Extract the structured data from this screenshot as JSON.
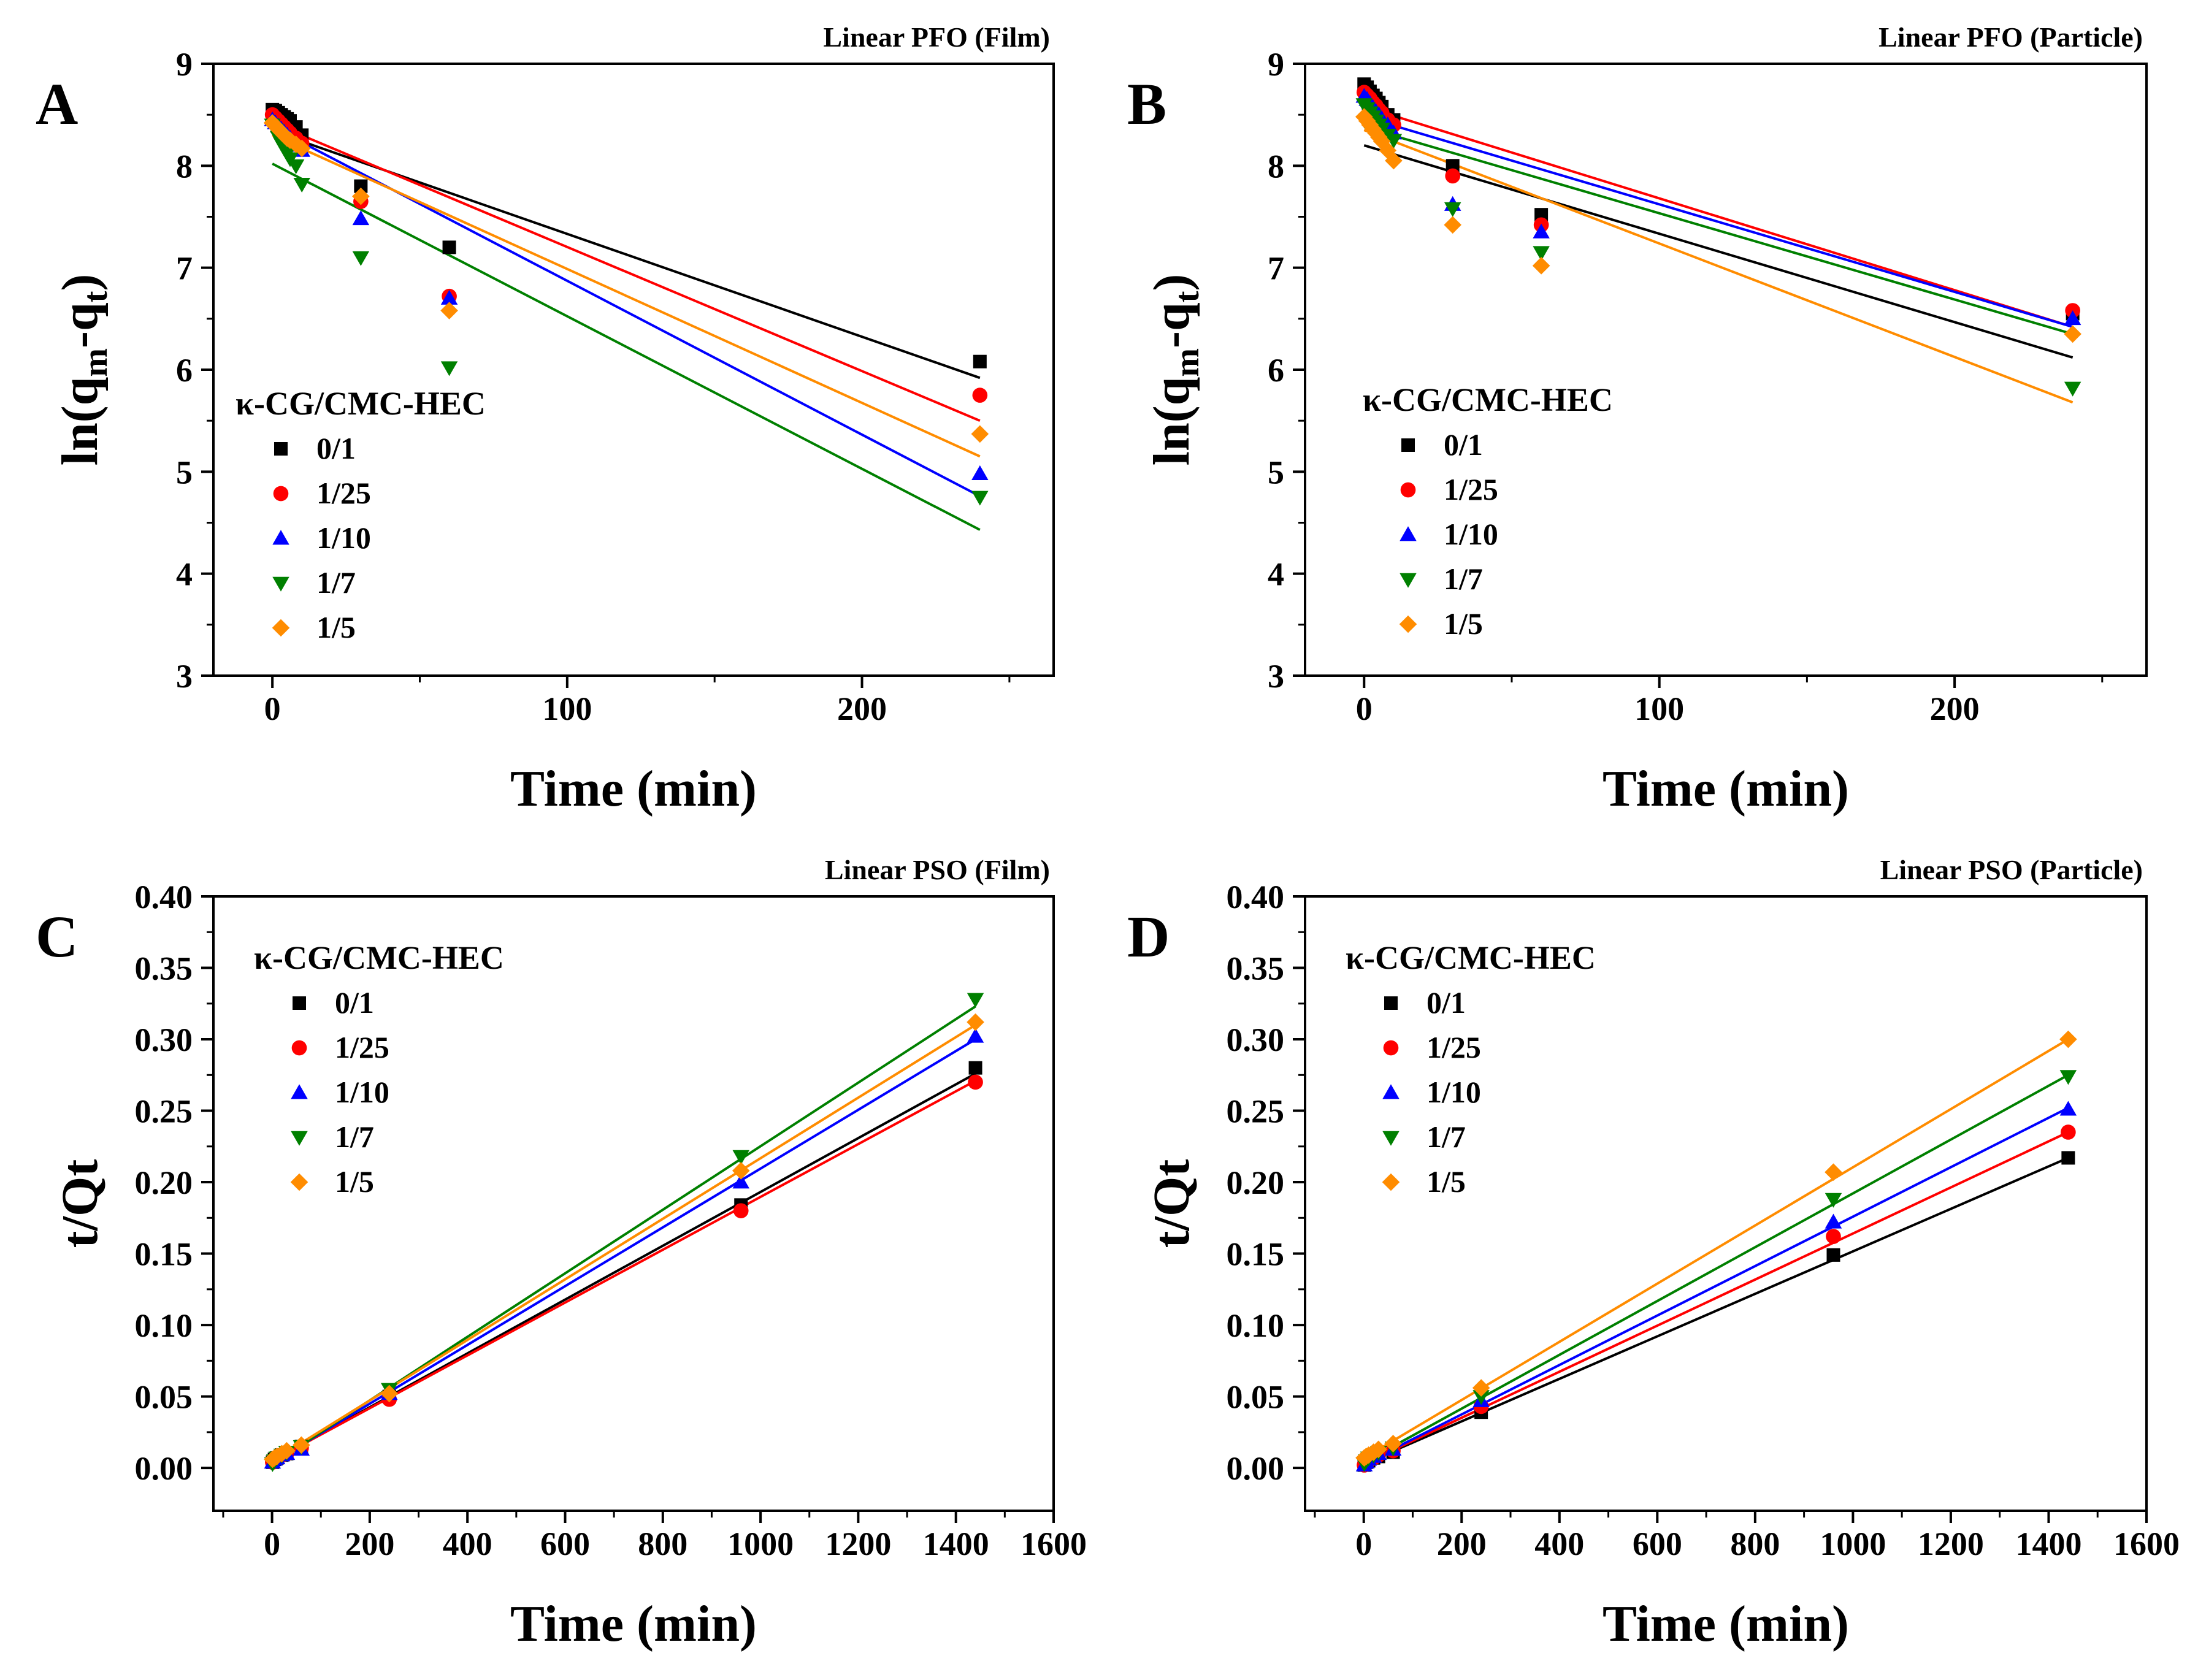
{
  "legend_title": "κ-CG/CMC-HEC",
  "series_names": [
    "0/1",
    "1/25",
    "1/10",
    "1/7",
    "1/5"
  ],
  "series_colors": [
    "#000000",
    "#ff0000",
    "#0000ff",
    "#008000",
    "#ff8c00"
  ],
  "series_markers": [
    "square",
    "circle",
    "triangle-up",
    "triangle-down",
    "diamond"
  ],
  "chart_data": [
    {
      "id": "A",
      "letter": "A",
      "type": "scatter",
      "title": "Linear PFO (Film)",
      "xlabel": "Time (min)",
      "ylabel_main": "ln(q",
      "ylabel_sub1": "m",
      "ylabel_mid": "-q",
      "ylabel_sub2": "t",
      "ylabel_end": ")",
      "xlim": [
        -20,
        265
      ],
      "ylim": [
        3,
        9
      ],
      "xticks": [
        0,
        100,
        200
      ],
      "yticks": [
        3,
        4,
        5,
        6,
        7,
        8,
        9
      ],
      "tick_decimals": 0,
      "series": [
        {
          "name": "0/1",
          "x": [
            0,
            1,
            2,
            3,
            4,
            5,
            6,
            8,
            10,
            30,
            60,
            240
          ],
          "y": [
            8.55,
            8.54,
            8.52,
            8.5,
            8.48,
            8.46,
            8.44,
            8.38,
            8.3,
            7.8,
            7.2,
            6.08
          ],
          "fit": [
            8.34,
            5.92
          ]
        },
        {
          "name": "1/25",
          "x": [
            0,
            1,
            2,
            3,
            4,
            5,
            6,
            8,
            10,
            30,
            60,
            240
          ],
          "y": [
            8.5,
            8.47,
            8.44,
            8.41,
            8.38,
            8.35,
            8.32,
            8.27,
            8.22,
            7.65,
            6.72,
            5.75
          ],
          "fit": [
            8.42,
            5.5
          ]
        },
        {
          "name": "1/10",
          "x": [
            0,
            1,
            2,
            3,
            4,
            5,
            6,
            8,
            10,
            30,
            60,
            240
          ],
          "y": [
            8.45,
            8.42,
            8.39,
            8.36,
            8.33,
            8.3,
            8.27,
            8.2,
            8.15,
            7.48,
            6.7,
            4.98
          ],
          "fit": [
            8.38,
            4.76
          ]
        },
        {
          "name": "1/7",
          "x": [
            0,
            1,
            2,
            3,
            4,
            5,
            6,
            8,
            10,
            30,
            60,
            240
          ],
          "y": [
            8.4,
            8.35,
            8.28,
            8.22,
            8.17,
            8.12,
            8.07,
            8.0,
            7.82,
            7.1,
            6.02,
            4.75
          ],
          "fit": [
            8.02,
            4.43
          ]
        },
        {
          "name": "1/5",
          "x": [
            0,
            1,
            2,
            3,
            4,
            5,
            6,
            8,
            10,
            30,
            60,
            240
          ],
          "y": [
            8.42,
            8.39,
            8.36,
            8.33,
            8.3,
            8.27,
            8.25,
            8.21,
            8.17,
            7.7,
            6.58,
            5.37
          ],
          "fit": [
            8.3,
            5.15
          ]
        }
      ]
    },
    {
      "id": "B",
      "letter": "B",
      "type": "scatter",
      "title": "Linear PFO (Particle)",
      "xlabel": "Time (min)",
      "ylabel_main": "ln(q",
      "ylabel_sub1": "m",
      "ylabel_mid": "-q",
      "ylabel_sub2": "t",
      "ylabel_end": ")",
      "xlim": [
        -20,
        265
      ],
      "ylim": [
        3,
        9
      ],
      "xticks": [
        0,
        100,
        200
      ],
      "yticks": [
        3,
        4,
        5,
        6,
        7,
        8,
        9
      ],
      "tick_decimals": 0,
      "series": [
        {
          "name": "0/1",
          "x": [
            0,
            1,
            2,
            3,
            4,
            5,
            6,
            8,
            10,
            30,
            60,
            240
          ],
          "y": [
            8.8,
            8.77,
            8.73,
            8.69,
            8.66,
            8.62,
            8.58,
            8.5,
            8.45,
            8.0,
            7.52,
            6.55
          ],
          "fit": [
            8.2,
            6.12
          ]
        },
        {
          "name": "1/25",
          "x": [
            0,
            1,
            2,
            3,
            4,
            5,
            6,
            8,
            10,
            30,
            60,
            240
          ],
          "y": [
            8.72,
            8.69,
            8.66,
            8.62,
            8.59,
            8.55,
            8.52,
            8.45,
            8.4,
            7.9,
            7.42,
            6.58
          ],
          "fit": [
            8.58,
            6.42
          ]
        },
        {
          "name": "1/10",
          "x": [
            0,
            1,
            2,
            3,
            4,
            5,
            6,
            8,
            10,
            30,
            60,
            240
          ],
          "y": [
            8.68,
            8.65,
            8.61,
            8.57,
            8.53,
            8.5,
            8.46,
            8.4,
            8.32,
            7.62,
            7.35,
            6.5
          ],
          "fit": [
            8.48,
            6.42
          ]
        },
        {
          "name": "1/7",
          "x": [
            0,
            1,
            2,
            3,
            4,
            5,
            6,
            8,
            10,
            30,
            60,
            240
          ],
          "y": [
            8.6,
            8.56,
            8.52,
            8.48,
            8.44,
            8.4,
            8.36,
            8.3,
            8.25,
            7.58,
            7.15,
            5.82
          ],
          "fit": [
            8.38,
            6.35
          ]
        },
        {
          "name": "1/5",
          "x": [
            0,
            1,
            2,
            3,
            4,
            5,
            6,
            8,
            10,
            30,
            60,
            240
          ],
          "y": [
            8.48,
            8.44,
            8.4,
            8.36,
            8.32,
            8.28,
            8.24,
            8.15,
            8.05,
            7.42,
            7.02,
            6.35
          ],
          "fit": [
            8.35,
            5.68
          ]
        }
      ]
    },
    {
      "id": "C",
      "letter": "C",
      "type": "scatter",
      "title": "Linear PSO (Film)",
      "xlabel": "Time (min)",
      "ylabel_main": "t/Qt",
      "ylabel_sub1": "",
      "ylabel_mid": "",
      "ylabel_sub2": "",
      "ylabel_end": "",
      "xlim": [
        -120,
        1600
      ],
      "ylim": [
        -0.03,
        0.4
      ],
      "xticks": [
        0,
        200,
        400,
        600,
        800,
        1000,
        1200,
        1400,
        1600
      ],
      "yticks": [
        0.0,
        0.05,
        0.1,
        0.15,
        0.2,
        0.25,
        0.3,
        0.35,
        0.4
      ],
      "tick_decimals": 2,
      "series": [
        {
          "name": "0/1",
          "x": [
            1,
            5,
            10,
            20,
            30,
            60,
            240,
            960,
            1440
          ],
          "y": [
            0.004,
            0.006,
            0.007,
            0.009,
            0.01,
            0.015,
            0.05,
            0.184,
            0.28
          ],
          "fit": [
            0.005,
            0.276
          ]
        },
        {
          "name": "1/25",
          "x": [
            1,
            5,
            10,
            20,
            30,
            60,
            240,
            960,
            1440
          ],
          "y": [
            0.004,
            0.006,
            0.007,
            0.009,
            0.01,
            0.014,
            0.048,
            0.18,
            0.27
          ],
          "fit": [
            0.005,
            0.271
          ]
        },
        {
          "name": "1/10",
          "x": [
            1,
            5,
            10,
            20,
            30,
            60,
            240,
            960,
            1440
          ],
          "y": [
            0.004,
            0.006,
            0.007,
            0.009,
            0.01,
            0.013,
            0.052,
            0.2,
            0.302
          ],
          "fit": [
            0.004,
            0.3
          ]
        },
        {
          "name": "1/7",
          "x": [
            1,
            5,
            10,
            20,
            30,
            60,
            240,
            960,
            1440
          ],
          "y": [
            0.003,
            0.005,
            0.007,
            0.009,
            0.011,
            0.015,
            0.055,
            0.218,
            0.328
          ],
          "fit": [
            0.003,
            0.323
          ]
        },
        {
          "name": "1/5",
          "x": [
            1,
            5,
            10,
            20,
            30,
            60,
            240,
            960,
            1440
          ],
          "y": [
            0.006,
            0.007,
            0.008,
            0.01,
            0.012,
            0.016,
            0.052,
            0.208,
            0.312
          ],
          "fit": [
            0.005,
            0.31
          ]
        }
      ]
    },
    {
      "id": "D",
      "letter": "D",
      "type": "scatter",
      "title": "Linear PSO (Particle)",
      "xlabel": "Time (min)",
      "ylabel_main": "t/Qt",
      "ylabel_sub1": "",
      "ylabel_mid": "",
      "ylabel_sub2": "",
      "ylabel_end": "",
      "xlim": [
        -120,
        1600
      ],
      "ylim": [
        -0.03,
        0.4
      ],
      "xticks": [
        0,
        200,
        400,
        600,
        800,
        1000,
        1200,
        1400,
        1600
      ],
      "yticks": [
        0.0,
        0.05,
        0.1,
        0.15,
        0.2,
        0.25,
        0.3,
        0.35,
        0.4
      ],
      "tick_decimals": 2,
      "series": [
        {
          "name": "0/1",
          "x": [
            1,
            5,
            10,
            20,
            30,
            60,
            240,
            960,
            1440
          ],
          "y": [
            0.002,
            0.004,
            0.005,
            0.007,
            0.008,
            0.011,
            0.039,
            0.149,
            0.217
          ],
          "fit": [
            0.003,
            0.217
          ]
        },
        {
          "name": "1/25",
          "x": [
            1,
            5,
            10,
            20,
            30,
            60,
            240,
            960,
            1440
          ],
          "y": [
            0.002,
            0.004,
            0.005,
            0.007,
            0.009,
            0.012,
            0.043,
            0.162,
            0.235
          ],
          "fit": [
            0.003,
            0.235
          ]
        },
        {
          "name": "1/10",
          "x": [
            1,
            5,
            10,
            20,
            30,
            60,
            240,
            960,
            1440
          ],
          "y": [
            0.002,
            0.004,
            0.006,
            0.008,
            0.01,
            0.013,
            0.047,
            0.172,
            0.251
          ],
          "fit": [
            0.003,
            0.252
          ]
        },
        {
          "name": "1/7",
          "x": [
            1,
            5,
            10,
            20,
            30,
            60,
            240,
            960,
            1440
          ],
          "y": [
            0.003,
            0.005,
            0.007,
            0.009,
            0.011,
            0.014,
            0.05,
            0.188,
            0.274
          ],
          "fit": [
            0.004,
            0.275
          ]
        },
        {
          "name": "1/5",
          "x": [
            1,
            5,
            10,
            20,
            30,
            60,
            240,
            960,
            1440
          ],
          "y": [
            0.007,
            0.008,
            0.009,
            0.011,
            0.013,
            0.017,
            0.056,
            0.207,
            0.3
          ],
          "fit": [
            0.007,
            0.3
          ]
        }
      ]
    }
  ]
}
